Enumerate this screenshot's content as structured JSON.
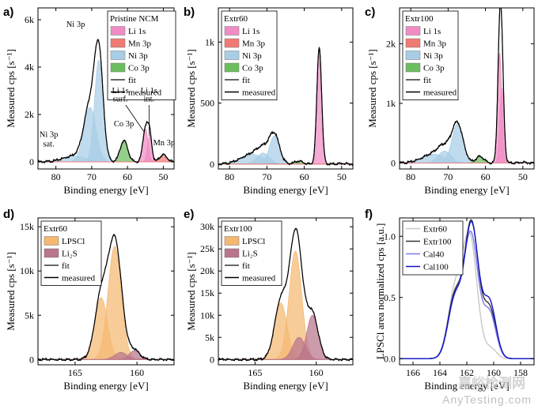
{
  "watermark": {
    "main": "嘉峪检测网",
    "site": "AnyTesting.com"
  },
  "chart_data": [
    {
      "id": "a",
      "letter": "a)",
      "type": "area",
      "xlabel": "Binding energy [eV]",
      "ylabel": "Measured cps [s⁻¹]",
      "xlim": [
        85,
        47
      ],
      "ylim": [
        -300,
        6500
      ],
      "xticks": [
        80,
        70,
        60,
        50
      ],
      "yticks": [
        0,
        2000,
        4000,
        6000
      ],
      "ytick_labels": [
        "0",
        "2k",
        "4k",
        "6k"
      ],
      "legend_title": "Pristine NCM",
      "legend": [
        {
          "label": "Li 1s",
          "color": "#f08cc4"
        },
        {
          "label": "Mn 3p",
          "color": "#f07a74"
        },
        {
          "label": "Ni 3p",
          "color": "#a8cde6"
        },
        {
          "label": "Co 3p",
          "color": "#6cbd5e"
        },
        {
          "label": "fit",
          "color": "#333333",
          "kind": "line"
        },
        {
          "label": "measured",
          "color": "#000000",
          "kind": "line"
        }
      ],
      "annotations": [
        {
          "text": "Ni 3p",
          "x": 74.5,
          "y": 5700
        },
        {
          "text": "Ni 3p",
          "x": 82,
          "y": 1050
        },
        {
          "text": "sat.",
          "x": 82,
          "y": 650
        },
        {
          "text": "Co 3p",
          "x": 61,
          "y": 1500
        },
        {
          "text": "Li 1s",
          "x": 62,
          "y": 2900
        },
        {
          "text": "surf.",
          "x": 62,
          "y": 2550
        },
        {
          "text": "Li 1s",
          "x": 54,
          "y": 2900
        },
        {
          "text": "int.",
          "x": 54,
          "y": 2550
        },
        {
          "text": "Mn 3p",
          "x": 49.8,
          "y": 700
        }
      ],
      "components": [
        {
          "name": "Ni 3p sat.",
          "color": "#a8cde6",
          "center": 75,
          "fwhm": 7,
          "height": 250
        },
        {
          "name": "Ni 3p",
          "color": "#a8cde6",
          "center": 70.5,
          "fwhm": 4,
          "height": 2300
        },
        {
          "name": "Ni 3p",
          "color": "#a8cde6",
          "center": 68,
          "fwhm": 2.8,
          "height": 4300
        },
        {
          "name": "Co 3p",
          "color": "#6cbd5e",
          "center": 61,
          "fwhm": 2.5,
          "height": 900
        },
        {
          "name": "Li 1s surf.",
          "color": "#f08cc4",
          "center": 55,
          "fwhm": 1.7,
          "height": 1400
        },
        {
          "name": "Li 1s int.",
          "color": "#f08cc4",
          "center": 53.8,
          "fwhm": 1.4,
          "height": 1100
        },
        {
          "name": "Mn 3p",
          "color": "#f07a74",
          "center": 50,
          "fwhm": 2.4,
          "height": 300
        }
      ]
    },
    {
      "id": "b",
      "letter": "b)",
      "type": "area",
      "xlabel": "Binding energy [eV]",
      "ylabel": "Measured cps [s⁻¹]",
      "xlim": [
        83,
        47
      ],
      "ylim": [
        -40,
        1280
      ],
      "xticks": [
        80,
        70,
        60,
        50
      ],
      "yticks": [
        0,
        500,
        1000
      ],
      "ytick_labels": [
        "0",
        "500",
        "1k"
      ],
      "legend_title": "Extr60",
      "legend": [
        {
          "label": "Li 1s",
          "color": "#f08cc4"
        },
        {
          "label": "Mn 3p",
          "color": "#f07a74"
        },
        {
          "label": "Ni 3p",
          "color": "#a8cde6"
        },
        {
          "label": "Co 3p",
          "color": "#6cbd5e"
        },
        {
          "label": "fit",
          "color": "#333333",
          "kind": "line"
        },
        {
          "label": "measured",
          "color": "#000000",
          "kind": "line"
        }
      ],
      "annotations": [],
      "components": [
        {
          "name": "Ni 3p sat.",
          "color": "#a8cde6",
          "center": 74,
          "fwhm": 7,
          "height": 80
        },
        {
          "name": "Ni 3p",
          "color": "#a8cde6",
          "center": 71,
          "fwhm": 4,
          "height": 90
        },
        {
          "name": "Ni 3p",
          "color": "#a8cde6",
          "center": 68,
          "fwhm": 3.2,
          "height": 230
        },
        {
          "name": "Co 3p",
          "color": "#6cbd5e",
          "center": 61.5,
          "fwhm": 2.5,
          "height": 25
        },
        {
          "name": "Li 1s",
          "color": "#f08cc4",
          "center": 56,
          "fwhm": 1.5,
          "height": 960
        },
        {
          "name": "Mn 3p",
          "color": "#f07a74",
          "center": 50,
          "fwhm": 2.5,
          "height": 5
        }
      ]
    },
    {
      "id": "c",
      "letter": "c)",
      "type": "area",
      "xlabel": "Binding energy [eV]",
      "ylabel": "Measured cps [s⁻¹]",
      "xlim": [
        83,
        47
      ],
      "ylim": [
        -100,
        2600
      ],
      "xticks": [
        80,
        70,
        60,
        50
      ],
      "yticks": [
        0,
        1000,
        2000
      ],
      "ytick_labels": [
        "0",
        "1k",
        "2k"
      ],
      "legend_title": "Extr100",
      "legend": [
        {
          "label": "Li 1s",
          "color": "#f08cc4"
        },
        {
          "label": "Mn 3p",
          "color": "#f07a74"
        },
        {
          "label": "Ni 3p",
          "color": "#a8cde6"
        },
        {
          "label": "Co 3p",
          "color": "#6cbd5e"
        },
        {
          "label": "fit",
          "color": "#333333",
          "kind": "line"
        },
        {
          "label": "measured",
          "color": "#000000",
          "kind": "line"
        }
      ],
      "annotations": [],
      "components": [
        {
          "name": "Ni 3p sat.",
          "color": "#a8cde6",
          "center": 74,
          "fwhm": 7,
          "height": 150
        },
        {
          "name": "Ni 3p",
          "color": "#a8cde6",
          "center": 71,
          "fwhm": 4,
          "height": 200
        },
        {
          "name": "Ni 3p",
          "color": "#a8cde6",
          "center": 67.5,
          "fwhm": 3.5,
          "height": 650
        },
        {
          "name": "Co 3p",
          "color": "#6cbd5e",
          "center": 61.5,
          "fwhm": 2.5,
          "height": 110
        },
        {
          "name": "Li 1s",
          "color": "#f08cc4",
          "center": 56.2,
          "fwhm": 1.3,
          "height": 1850
        },
        {
          "name": "Li 1s",
          "color": "#f08cc4",
          "center": 55.6,
          "fwhm": 1.3,
          "height": 1250
        },
        {
          "name": "Mn 3p",
          "color": "#f07a74",
          "center": 50,
          "fwhm": 2.5,
          "height": 10
        }
      ]
    },
    {
      "id": "d",
      "letter": "d)",
      "type": "area",
      "xlabel": "Binding energy [eV]",
      "ylabel": "Measured cps [s⁻¹]",
      "xlim": [
        168,
        157
      ],
      "ylim": [
        -600,
        16000
      ],
      "xticks": [
        165,
        160
      ],
      "yticks": [
        0,
        5000,
        10000,
        15000
      ],
      "ytick_labels": [
        "0",
        "5k",
        "10k",
        "15k"
      ],
      "legend_title": "Extr60",
      "legend": [
        {
          "label": "LPSCl",
          "color": "#f5b871"
        },
        {
          "label": "Li₂S",
          "color": "#b8758c"
        },
        {
          "label": "fit",
          "color": "#333333",
          "kind": "line"
        },
        {
          "label": "measured",
          "color": "#000000",
          "kind": "line"
        }
      ],
      "annotations": [],
      "components": [
        {
          "name": "LPSCl",
          "color": "#f5b871",
          "center": 162.9,
          "fwhm": 1.2,
          "height": 7000
        },
        {
          "name": "LPSCl",
          "color": "#f5b871",
          "center": 161.8,
          "fwhm": 1.25,
          "height": 12800
        },
        {
          "name": "Li₂S",
          "color": "#b8758c",
          "center": 161.3,
          "fwhm": 1.2,
          "height": 800
        },
        {
          "name": "Li₂S",
          "color": "#b8758c",
          "center": 160.2,
          "fwhm": 1.0,
          "height": 1000
        }
      ]
    },
    {
      "id": "e",
      "letter": "e)",
      "type": "area",
      "xlabel": "Binding energy [eV]",
      "ylabel": "Measured cps [s⁻¹]",
      "xlim": [
        168,
        157
      ],
      "ylim": [
        -1200,
        32000
      ],
      "xticks": [
        165,
        160
      ],
      "yticks": [
        0,
        5000,
        10000,
        15000,
        20000,
        25000,
        30000
      ],
      "ytick_labels": [
        "0",
        "5k",
        "10k",
        "15k",
        "20k",
        "25k",
        "30k"
      ],
      "legend_title": "Extr100",
      "legend": [
        {
          "label": "LPSCl",
          "color": "#f5b871"
        },
        {
          "label": "Li₂S",
          "color": "#b8758c"
        },
        {
          "label": "fit",
          "color": "#333333",
          "kind": "line"
        },
        {
          "label": "measured",
          "color": "#000000",
          "kind": "line"
        }
      ],
      "annotations": [],
      "components": [
        {
          "name": "LPSCl",
          "color": "#f5b871",
          "center": 162.9,
          "fwhm": 1.2,
          "height": 12800
        },
        {
          "name": "LPSCl",
          "color": "#f5b871",
          "center": 161.7,
          "fwhm": 1.2,
          "height": 24500
        },
        {
          "name": "Li₂S",
          "color": "#b8758c",
          "center": 161.4,
          "fwhm": 1.2,
          "height": 5000
        },
        {
          "name": "Li₂S",
          "color": "#b8758c",
          "center": 160.3,
          "fwhm": 1.1,
          "height": 10000
        }
      ]
    },
    {
      "id": "f",
      "letter": "f)",
      "type": "line",
      "xlabel": "Binding energy [eV]",
      "ylabel": "LPSCl area normalized cps [a.u.]",
      "xlim": [
        167,
        157
      ],
      "ylim": [
        -0.05,
        1.15
      ],
      "xticks": [
        166,
        164,
        162,
        160,
        158
      ],
      "yticks": [
        0,
        0.5,
        1.0
      ],
      "ytick_labels": [
        "0.0",
        "0.5",
        "1.0"
      ],
      "legend_title": "",
      "legend": [
        {
          "label": "Extr60",
          "color": "#c8c8c8",
          "kind": "line"
        },
        {
          "label": "Extr100",
          "color": "#333333",
          "kind": "line"
        },
        {
          "label": "Cal40",
          "color": "#7a7ae8",
          "kind": "line"
        },
        {
          "label": "Cal100",
          "color": "#1414c8",
          "kind": "line"
        }
      ],
      "annotations": [],
      "series": [
        {
          "name": "Extr60",
          "color": "#c8c8c8",
          "peaks": [
            [
              162.9,
              1.2,
              0.52
            ],
            [
              161.8,
              1.25,
              0.95
            ],
            [
              161.3,
              1.2,
              0.06
            ],
            [
              160.2,
              1.0,
              0.08
            ]
          ]
        },
        {
          "name": "Extr100",
          "color": "#333333",
          "peaks": [
            [
              162.9,
              1.2,
              0.5
            ],
            [
              161.7,
              1.2,
              0.93
            ],
            [
              161.4,
              1.2,
              0.2
            ],
            [
              160.3,
              1.1,
              0.4
            ]
          ]
        },
        {
          "name": "Cal40",
          "color": "#7a7ae8",
          "peaks": [
            [
              162.9,
              1.2,
              0.46
            ],
            [
              161.75,
              1.2,
              0.88
            ],
            [
              161.3,
              1.2,
              0.18
            ],
            [
              160.3,
              1.1,
              0.36
            ]
          ]
        },
        {
          "name": "Cal100",
          "color": "#1414c8",
          "peaks": [
            [
              162.9,
              1.2,
              0.48
            ],
            [
              161.7,
              1.2,
              0.9
            ],
            [
              161.4,
              1.2,
              0.22
            ],
            [
              160.3,
              1.1,
              0.45
            ]
          ]
        }
      ]
    }
  ]
}
